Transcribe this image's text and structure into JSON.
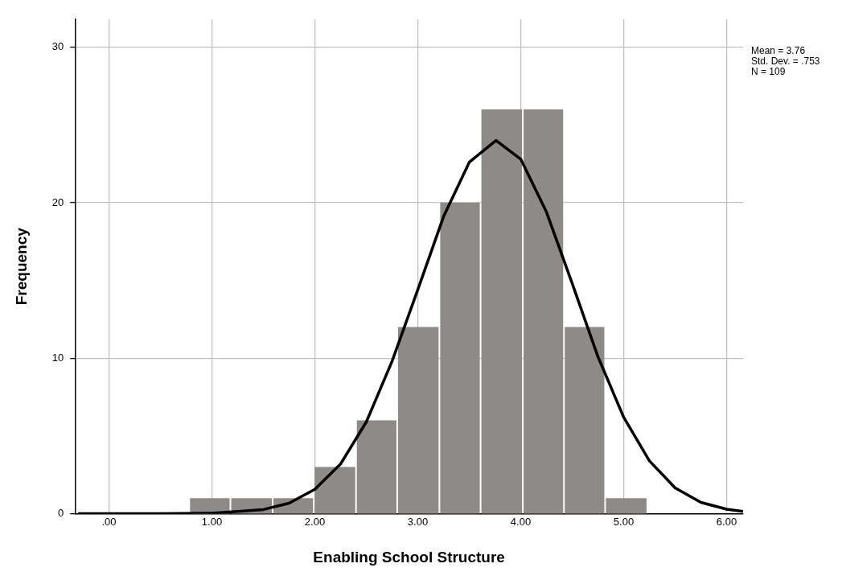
{
  "chart_data": {
    "type": "histogram",
    "xlabel": "Enabling School Structure",
    "ylabel": "Frequency",
    "annotations": [
      "Mean = 3.76",
      "Std. Dev. = .753",
      "N = 109"
    ],
    "bins": [
      0.78,
      1.18,
      1.59,
      1.99,
      2.4,
      2.8,
      3.21,
      3.61,
      4.02,
      4.42,
      4.82,
      5.23
    ],
    "series": [
      {
        "color": "#8e8a89",
        "values": [
          1,
          1,
          1,
          3,
          6,
          12,
          20,
          26,
          26,
          12,
          1
        ]
      },
      {
        "type": "line",
        "color": "#000000",
        "x": [
          -0.3,
          0.5,
          1.0,
          1.5,
          1.75,
          2.0,
          2.25,
          2.5,
          2.75,
          3.0,
          3.25,
          3.5,
          3.76,
          4.0,
          4.25,
          4.5,
          4.75,
          5.0,
          5.25,
          5.5,
          5.75,
          6.0,
          6.16
        ],
        "values": [
          0,
          0,
          0.03,
          0.27,
          0.68,
          1.57,
          3.2,
          5.9,
          9.8,
          14.4,
          19.1,
          22.6,
          24,
          22.8,
          19.4,
          14.8,
          10.1,
          6.2,
          3.4,
          1.66,
          0.73,
          0.29,
          0.15
        ]
      }
    ],
    "xlim": [
      -0.33,
      6.16
    ],
    "xticks": [
      {
        "value": 0,
        "label": ".00"
      },
      {
        "value": 1,
        "label": "1.00"
      },
      {
        "value": 2,
        "label": "2.00"
      },
      {
        "value": 3,
        "label": "3.00"
      },
      {
        "value": 4,
        "label": "4.00"
      },
      {
        "value": 5,
        "label": "5.00"
      },
      {
        "value": 6,
        "label": "6.00"
      }
    ],
    "ylim": [
      0,
      31.8
    ],
    "yticks": [
      0,
      10,
      20,
      30
    ],
    "grid": true,
    "legend": false,
    "line_style": "solid",
    "marker": "none"
  }
}
